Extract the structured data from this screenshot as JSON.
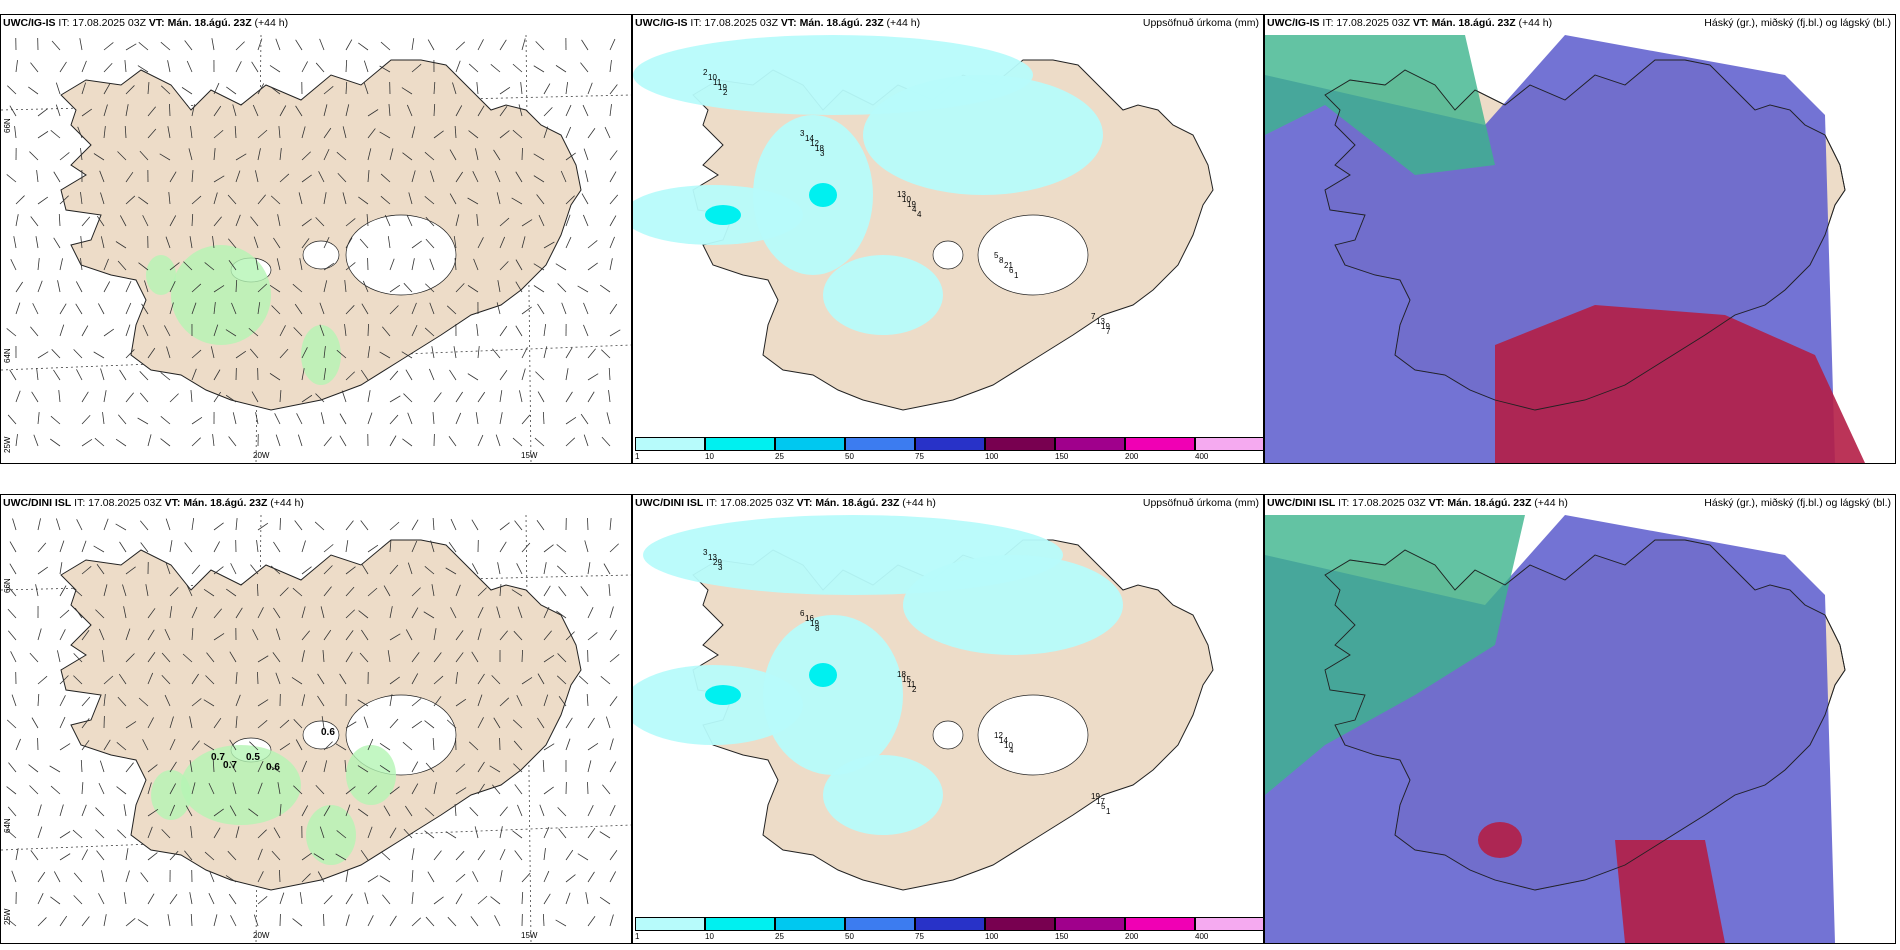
{
  "panels": {
    "p1": {
      "model": "UWC/IG-IS",
      "it": "IT: 17.08.2025 03Z",
      "vt_label": "VT:",
      "vt": "Mán. 18.ágú. 23Z",
      "lead": "(+44 h)",
      "right": ""
    },
    "p2": {
      "model": "UWC/IG-IS",
      "it": "IT: 17.08.2025 03Z",
      "vt_label": "VT:",
      "vt": "Mán. 18.ágú. 23Z",
      "lead": "(+44 h)",
      "right": "Uppsöfnuð úrkoma (mm)"
    },
    "p3": {
      "model": "UWC/IG-IS",
      "it": "IT: 17.08.2025 03Z",
      "vt_label": "VT:",
      "vt": "Mán. 18.ágú. 23Z",
      "lead": "(+44 h)",
      "right": "Háský (gr.), miðský (fj.bl.) og lágský (bl.)"
    },
    "p4": {
      "model": "UWC/DINI ISL",
      "it": "IT: 17.08.2025 03Z",
      "vt_label": "VT:",
      "vt": "Mán. 18.ágú. 23Z",
      "lead": "(+44 h)",
      "right": ""
    },
    "p5": {
      "model": "UWC/DINI ISL",
      "it": "IT: 17.08.2025 03Z",
      "vt_label": "VT:",
      "vt": "Mán. 18.ágú. 23Z",
      "lead": "(+44 h)",
      "right": "Uppsöfnuð úrkoma (mm)"
    },
    "p6": {
      "model": "UWC/DINI ISL",
      "it": "IT: 17.08.2025 03Z",
      "vt_label": "VT:",
      "vt": "Mán. 18.ágú. 23Z",
      "lead": "(+44 h)",
      "right": "Háský (gr.), miðský (fj.bl.) og lágský (bl.)"
    }
  },
  "grid_labels": {
    "lat_66": "66N",
    "lat_64": "64N",
    "lon_25": "25W",
    "lon_20": "20W",
    "lon_15": "15W"
  },
  "precip_values_top": [
    "2",
    "3",
    "13",
    "5",
    "7",
    "10",
    "14",
    "10",
    "8",
    "13",
    "11",
    "12",
    "19",
    "21",
    "19",
    "19",
    "18",
    "4",
    "6",
    "7",
    "2",
    "3",
    "4",
    "1"
  ],
  "precip_values_bottom": [
    "3",
    "6",
    "18",
    "12",
    "19",
    "13",
    "16",
    "15",
    "14",
    "17",
    "29",
    "19",
    "11",
    "10",
    "5",
    "3",
    "8",
    "2",
    "4",
    "1"
  ],
  "wind_max_labels": [
    "0.7",
    "0.7",
    "0.5",
    "0.6",
    "0.6"
  ],
  "colorbar": {
    "ticks": [
      "1",
      "10",
      "25",
      "50",
      "75",
      "100",
      "150",
      "200",
      "400"
    ],
    "colors": [
      "#b7fbfb",
      "#00f0f0",
      "#00c8f0",
      "#3c7cf0",
      "#2832c8",
      "#780050",
      "#a0008c",
      "#f000b4",
      "#f5aaf0"
    ]
  },
  "colors": {
    "land": "#eddcc8",
    "ice": "#ffffff",
    "sea": "#ffffff",
    "precip_light": "#b7fbfb",
    "cloud_low": "#5a5acd",
    "cloud_high": "#3cb48c",
    "cloud_red": "#b41e46",
    "wind_green": "#b4f5b4"
  }
}
